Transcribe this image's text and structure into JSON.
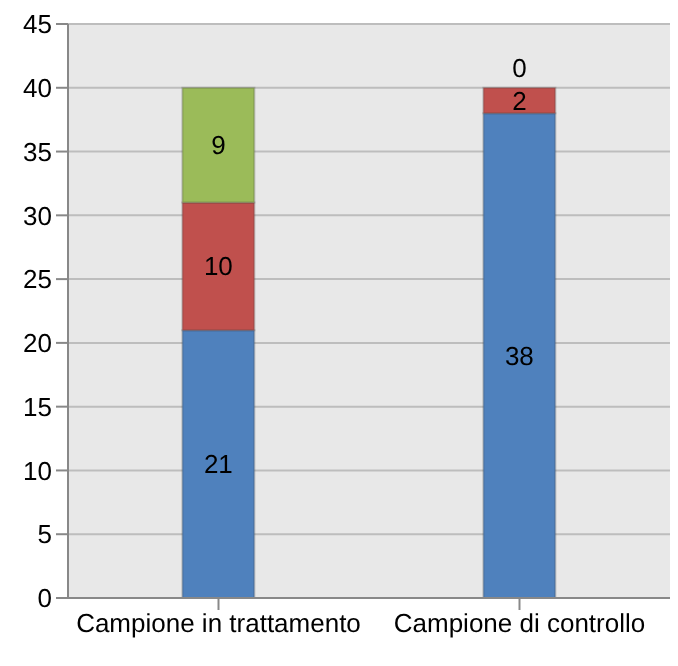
{
  "chart_data": {
    "type": "bar",
    "stacked": true,
    "categories": [
      "Campione in trattamento",
      "Campione di controllo"
    ],
    "series": [
      {
        "color": "#4f81bd",
        "values": [
          21,
          38
        ]
      },
      {
        "color": "#c0504d",
        "values": [
          10,
          2
        ]
      },
      {
        "color": "#9bbb59",
        "values": [
          9,
          0
        ]
      }
    ],
    "ylim": [
      0,
      45
    ],
    "yticks": [
      0,
      5,
      10,
      15,
      20,
      25,
      30,
      35,
      40,
      45
    ],
    "grid": "y",
    "data_labels": true,
    "legend": false
  }
}
